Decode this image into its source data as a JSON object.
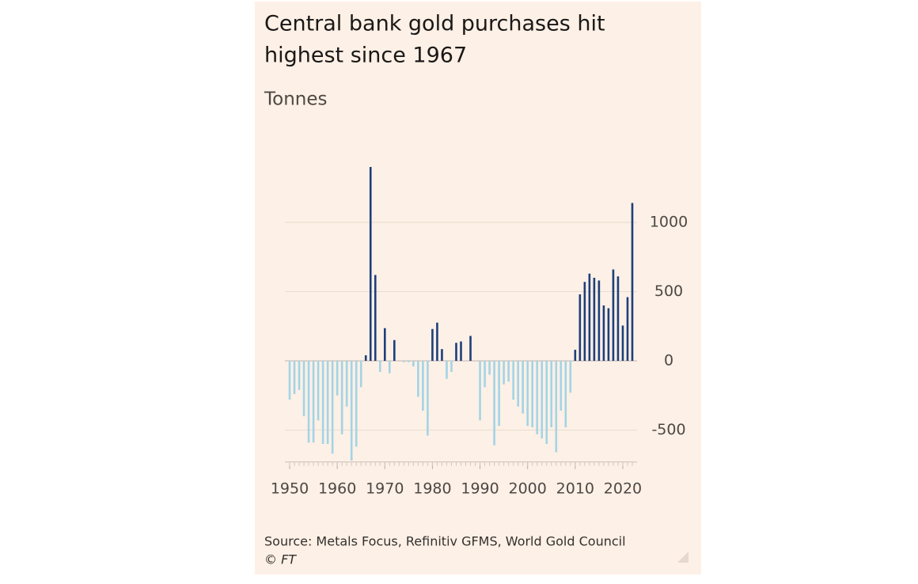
{
  "chart_data": {
    "type": "bar",
    "title": [
      "Central bank gold purchases hit",
      "highest since 1967"
    ],
    "subtitle": "Tonnes",
    "source": "Source: Metals Focus, Refinitiv GFMS, World Gold Council",
    "credit": "© FT",
    "x": [
      1950,
      1951,
      1952,
      1953,
      1954,
      1955,
      1956,
      1957,
      1958,
      1959,
      1960,
      1961,
      1962,
      1963,
      1964,
      1965,
      1966,
      1967,
      1968,
      1969,
      1970,
      1971,
      1972,
      1973,
      1974,
      1975,
      1976,
      1977,
      1978,
      1979,
      1980,
      1981,
      1982,
      1983,
      1984,
      1985,
      1986,
      1987,
      1988,
      1989,
      1990,
      1991,
      1992,
      1993,
      1994,
      1995,
      1996,
      1997,
      1998,
      1999,
      2000,
      2001,
      2002,
      2003,
      2004,
      2005,
      2006,
      2007,
      2008,
      2009,
      2010,
      2011,
      2012,
      2013,
      2014,
      2015,
      2016,
      2017,
      2018,
      2019,
      2020,
      2021,
      2022
    ],
    "values": [
      -280,
      -240,
      -210,
      -400,
      -590,
      -590,
      -430,
      -600,
      -600,
      -670,
      -250,
      -530,
      -330,
      -720,
      -620,
      -190,
      40,
      1400,
      620,
      -80,
      236,
      -90,
      150,
      0,
      -10,
      -10,
      -40,
      -260,
      -360,
      -540,
      230,
      276,
      85,
      -130,
      -80,
      130,
      140,
      0,
      180,
      0,
      -430,
      -190,
      -100,
      -610,
      -470,
      -170,
      -150,
      -280,
      -330,
      -380,
      -470,
      -480,
      -530,
      -560,
      -600,
      -480,
      -660,
      -360,
      -480,
      -230,
      80,
      480,
      570,
      630,
      600,
      580,
      400,
      380,
      660,
      610,
      255,
      460,
      1140
    ],
    "positive_color": "#1e3f7a",
    "negative_color": "#a3d4e5",
    "xlim": [
      1949,
      2023
    ],
    "xticks": [
      1950,
      1960,
      1970,
      1980,
      1990,
      2000,
      2010,
      2020
    ],
    "ylim": [
      -730,
      1450
    ],
    "yticks": [
      -500,
      0,
      500,
      1000
    ],
    "grid": true
  }
}
